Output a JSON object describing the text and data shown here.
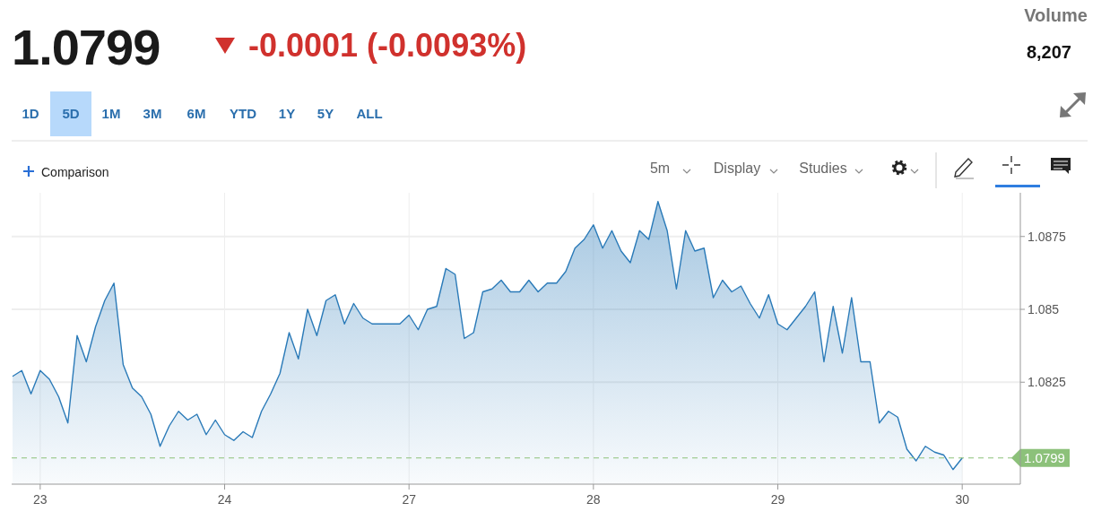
{
  "chart_data": {
    "type": "area",
    "title": "1.0799",
    "subtitle": "-0.0001 (-0.0093%)",
    "annotations": [
      "Volume",
      "8,207",
      "1D",
      "5D",
      "1M",
      "3M",
      "6M",
      "YTD",
      "1Y",
      "5Y",
      "ALL",
      "Comparison",
      "5m",
      "Display",
      "Studies"
    ],
    "categories": [
      null,
      null,
      null,
      "23",
      null,
      null,
      null,
      null,
      null,
      null,
      null,
      null,
      null,
      null,
      null,
      null,
      null,
      null,
      null,
      null,
      null,
      null,
      null,
      "24",
      null,
      null,
      null,
      null,
      null,
      null,
      null,
      null,
      null,
      null,
      null,
      null,
      null,
      null,
      null,
      null,
      null,
      null,
      null,
      "27",
      null,
      null,
      null,
      null,
      null,
      null,
      null,
      null,
      null,
      null,
      null,
      null,
      null,
      null,
      null,
      null,
      null,
      null,
      null,
      "28",
      null,
      null,
      null,
      null,
      null,
      null,
      null,
      null,
      null,
      null,
      null,
      null,
      null,
      null,
      null,
      null,
      null,
      null,
      null,
      "29",
      null,
      null,
      null,
      null,
      null,
      null,
      null,
      null,
      null,
      null,
      null,
      null,
      null,
      null,
      null,
      null,
      null,
      null,
      null,
      "30"
    ],
    "ylim": [
      1.079,
      1.089
    ],
    "yticks": [
      1.0825,
      1.085,
      1.0875
    ],
    "grid": true,
    "ref_lines": [
      {
        "axis": "y",
        "value": 1.0799,
        "label": "1.0799",
        "color": "#8cc17a",
        "line_style": "dashed"
      }
    ],
    "series": [
      {
        "color": "#2a7ab8",
        "values": [
          1.0827,
          1.0829,
          1.0821,
          1.0829,
          1.0826,
          1.082,
          1.0811,
          1.0841,
          1.0832,
          1.0844,
          1.0853,
          1.0859,
          1.0831,
          1.0823,
          1.082,
          1.0814,
          1.0803,
          1.081,
          1.0815,
          1.0812,
          1.0814,
          1.0807,
          1.0812,
          1.0807,
          1.0805,
          1.0808,
          1.0806,
          1.0815,
          1.0821,
          1.0828,
          1.0842,
          1.0833,
          1.085,
          1.0841,
          1.0853,
          1.0855,
          1.0845,
          1.0852,
          1.0847,
          1.0845,
          1.0845,
          1.0845,
          1.0845,
          1.0848,
          1.0843,
          1.085,
          1.0851,
          1.0864,
          1.0862,
          1.084,
          1.0842,
          1.0856,
          1.0857,
          1.086,
          1.0856,
          1.0856,
          1.086,
          1.0856,
          1.0859,
          1.0859,
          1.0863,
          1.0871,
          1.0874,
          1.0879,
          1.0871,
          1.0877,
          1.087,
          1.0866,
          1.0877,
          1.0874,
          1.0887,
          1.0877,
          1.0857,
          1.0877,
          1.087,
          1.0871,
          1.0854,
          1.086,
          1.0856,
          1.0858,
          1.0852,
          1.0847,
          1.0855,
          1.0845,
          1.0843,
          1.0847,
          1.0851,
          1.0856,
          1.0832,
          1.0851,
          1.0835,
          1.0854,
          1.0832,
          1.0832,
          1.0811,
          1.0815,
          1.0813,
          1.0802,
          1.0798,
          1.0803,
          1.0801,
          1.08,
          1.0795,
          1.0799
        ]
      }
    ]
  }
}
